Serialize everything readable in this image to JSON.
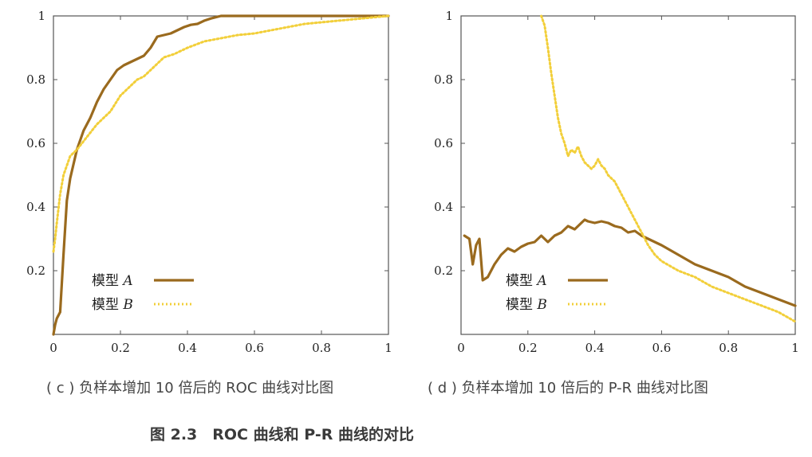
{
  "colors": {
    "model_a": "#9a6a1e",
    "model_b": "#f2cf3a",
    "axis": "#555555"
  },
  "captions": {
    "c": "( c ) 负样本增加 10 倍后的 ROC 曲线对比图",
    "d": "( d ) 负样本增加 10 倍后的 P-R 曲线对比图",
    "figure": "图 2.3　ROC 曲线和 P-R 曲线的对比"
  },
  "chart_data": [
    {
      "id": "c",
      "type": "line",
      "xlim": [
        0,
        1
      ],
      "ylim": [
        0,
        1
      ],
      "xticks": [
        "0",
        "0.2",
        "0.4",
        "0.6",
        "0.8",
        "1"
      ],
      "yticks": [
        "0.2",
        "0.4",
        "0.6",
        "0.8",
        "1"
      ],
      "legend_position": "bottom-left",
      "series": [
        {
          "name": "模型 A",
          "name_prefix": "模型 ",
          "name_var": "A",
          "style": "solid",
          "color": "#9a6a1e",
          "x": [
            0,
            0.005,
            0.01,
            0.02,
            0.03,
            0.04,
            0.05,
            0.07,
            0.09,
            0.11,
            0.13,
            0.15,
            0.17,
            0.19,
            0.21,
            0.23,
            0.25,
            0.27,
            0.29,
            0.31,
            0.33,
            0.35,
            0.37,
            0.39,
            0.41,
            0.43,
            0.45,
            0.47,
            0.5,
            0.55,
            0.6,
            0.7,
            0.8,
            0.9,
            1.0
          ],
          "y": [
            0,
            0.03,
            0.05,
            0.07,
            0.25,
            0.42,
            0.49,
            0.58,
            0.64,
            0.68,
            0.73,
            0.77,
            0.8,
            0.83,
            0.845,
            0.855,
            0.865,
            0.875,
            0.9,
            0.935,
            0.94,
            0.945,
            0.955,
            0.965,
            0.972,
            0.975,
            0.985,
            0.992,
            1.0,
            1.0,
            1.0,
            1.0,
            1.0,
            1.0,
            1.0
          ]
        },
        {
          "name": "模型 B",
          "name_prefix": "模型 ",
          "name_var": "B",
          "style": "dotted",
          "color": "#f2cf3a",
          "x": [
            0,
            0.005,
            0.01,
            0.02,
            0.03,
            0.05,
            0.07,
            0.1,
            0.13,
            0.15,
            0.17,
            0.2,
            0.23,
            0.25,
            0.27,
            0.3,
            0.33,
            0.36,
            0.4,
            0.45,
            0.5,
            0.55,
            0.6,
            0.65,
            0.7,
            0.75,
            0.8,
            0.85,
            0.9,
            0.95,
            1.0
          ],
          "y": [
            0.26,
            0.3,
            0.35,
            0.44,
            0.5,
            0.56,
            0.58,
            0.62,
            0.66,
            0.68,
            0.7,
            0.75,
            0.78,
            0.8,
            0.81,
            0.84,
            0.87,
            0.88,
            0.9,
            0.92,
            0.93,
            0.94,
            0.945,
            0.955,
            0.965,
            0.975,
            0.98,
            0.985,
            0.99,
            0.995,
            1.0
          ]
        }
      ]
    },
    {
      "id": "d",
      "type": "line",
      "xlim": [
        0,
        1
      ],
      "ylim": [
        0,
        1
      ],
      "xticks": [
        "0",
        "0.2",
        "0.4",
        "0.6",
        "0.8",
        "1"
      ],
      "yticks": [
        "0.2",
        "0.4",
        "0.6",
        "0.8",
        "1"
      ],
      "legend_position": "bottom-left",
      "series": [
        {
          "name": "模型 A",
          "name_prefix": "模型 ",
          "name_var": "A",
          "style": "solid",
          "color": "#9a6a1e",
          "x": [
            0.01,
            0.025,
            0.035,
            0.045,
            0.055,
            0.065,
            0.08,
            0.1,
            0.12,
            0.14,
            0.16,
            0.18,
            0.2,
            0.22,
            0.24,
            0.26,
            0.28,
            0.3,
            0.32,
            0.34,
            0.36,
            0.37,
            0.38,
            0.4,
            0.42,
            0.44,
            0.46,
            0.48,
            0.5,
            0.52,
            0.54,
            0.56,
            0.58,
            0.6,
            0.65,
            0.7,
            0.75,
            0.8,
            0.85,
            0.9,
            0.95,
            1.0
          ],
          "y": [
            0.31,
            0.3,
            0.22,
            0.28,
            0.3,
            0.17,
            0.18,
            0.22,
            0.25,
            0.27,
            0.26,
            0.275,
            0.285,
            0.29,
            0.31,
            0.29,
            0.31,
            0.32,
            0.34,
            0.33,
            0.35,
            0.36,
            0.355,
            0.35,
            0.355,
            0.35,
            0.34,
            0.335,
            0.32,
            0.325,
            0.31,
            0.3,
            0.29,
            0.28,
            0.25,
            0.22,
            0.2,
            0.18,
            0.15,
            0.13,
            0.11,
            0.09
          ]
        },
        {
          "name": "模型 B",
          "name_prefix": "模型 ",
          "name_var": "B",
          "style": "dotted",
          "color": "#f2cf3a",
          "x": [
            0.24,
            0.25,
            0.26,
            0.27,
            0.28,
            0.29,
            0.3,
            0.31,
            0.32,
            0.33,
            0.34,
            0.35,
            0.36,
            0.37,
            0.38,
            0.39,
            0.4,
            0.41,
            0.42,
            0.43,
            0.44,
            0.45,
            0.46,
            0.48,
            0.5,
            0.52,
            0.54,
            0.56,
            0.58,
            0.6,
            0.65,
            0.7,
            0.75,
            0.8,
            0.85,
            0.9,
            0.95,
            1.0
          ],
          "y": [
            1.0,
            0.97,
            0.9,
            0.82,
            0.75,
            0.68,
            0.63,
            0.6,
            0.56,
            0.58,
            0.57,
            0.59,
            0.56,
            0.54,
            0.53,
            0.52,
            0.53,
            0.55,
            0.53,
            0.52,
            0.5,
            0.49,
            0.48,
            0.44,
            0.4,
            0.36,
            0.32,
            0.28,
            0.25,
            0.23,
            0.2,
            0.18,
            0.15,
            0.13,
            0.11,
            0.09,
            0.07,
            0.04
          ]
        }
      ]
    }
  ]
}
